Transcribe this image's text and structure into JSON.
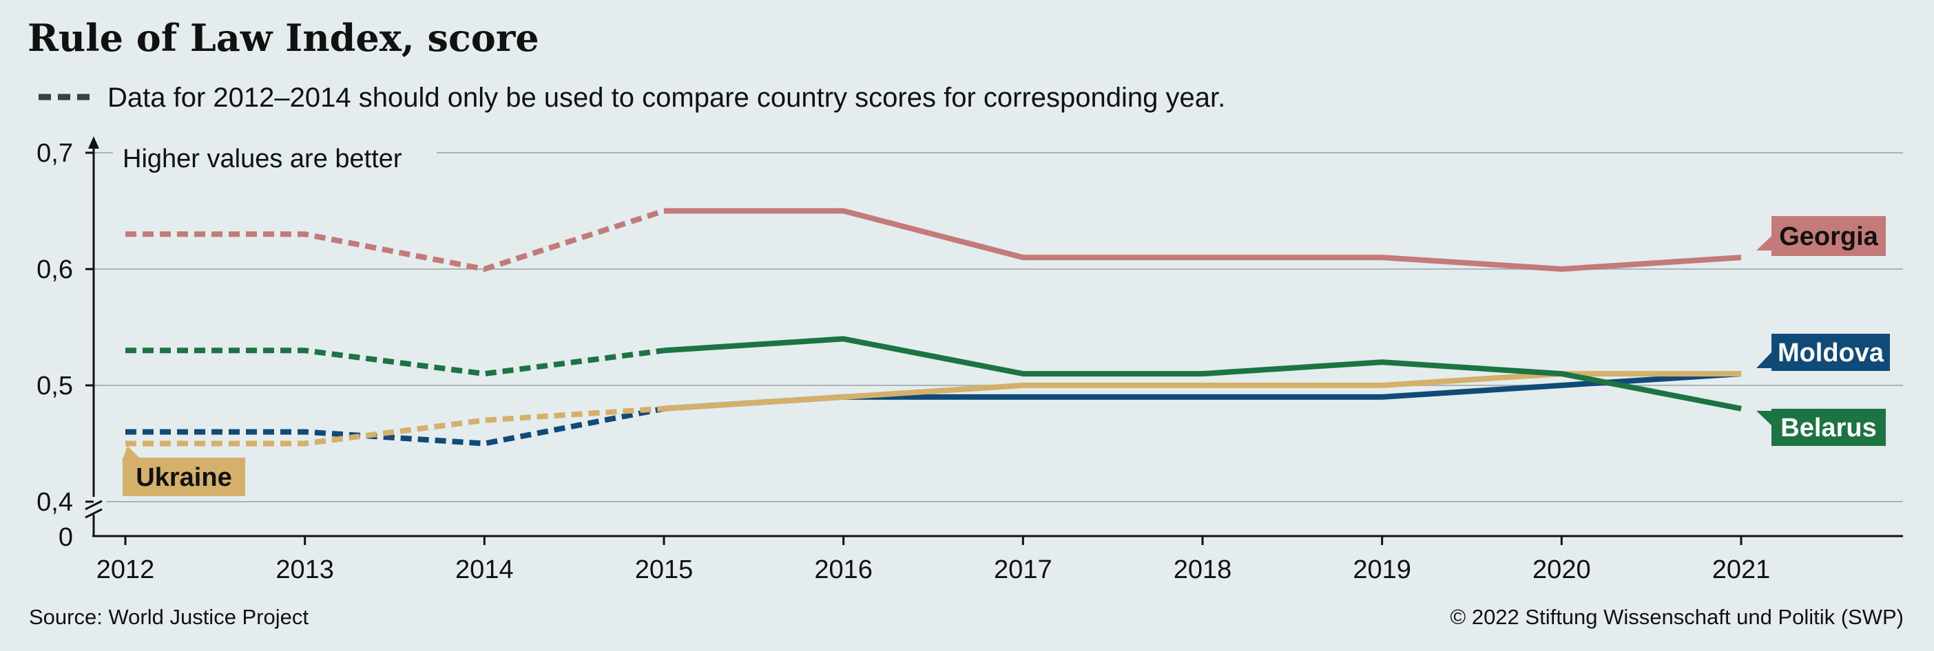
{
  "chart_data": {
    "type": "line",
    "title": "Rule of Law Index, score",
    "legend_note": "Data for 2012–2014 should only be used to compare country scores for corresponding year.",
    "ylabel": "Higher values are better",
    "x": [
      "2012",
      "2013",
      "2014",
      "2015",
      "2016",
      "2017",
      "2018",
      "2019",
      "2020",
      "2021"
    ],
    "y_ticks": [
      "0,7",
      "0,6",
      "0,5",
      "0,4"
    ],
    "y_tick_values": [
      0.7,
      0.6,
      0.5,
      0.4
    ],
    "y_zero_label": "0",
    "ylim": [
      0.4,
      0.7
    ],
    "axis_break": true,
    "dashed_range": [
      "2012",
      "2015"
    ],
    "grid": true,
    "series": [
      {
        "name": "Georgia",
        "color": "#c47a78",
        "label_color": "#111111",
        "values": [
          0.63,
          0.63,
          0.6,
          0.65,
          0.65,
          0.61,
          0.61,
          0.61,
          0.6,
          0.61
        ]
      },
      {
        "name": "Moldova",
        "color": "#0f4a78",
        "label_color": "#ffffff",
        "values": [
          0.46,
          0.46,
          0.45,
          0.48,
          0.49,
          0.49,
          0.49,
          0.49,
          0.5,
          0.51
        ]
      },
      {
        "name": "Ukraine",
        "color": "#d4b06a",
        "label_color": "#111111",
        "values": [
          0.45,
          0.45,
          0.47,
          0.48,
          0.49,
          0.5,
          0.5,
          0.5,
          0.51,
          0.51
        ]
      },
      {
        "name": "Belarus",
        "color": "#1c7442",
        "label_color": "#ffffff",
        "values": [
          0.53,
          0.53,
          0.51,
          0.53,
          0.54,
          0.51,
          0.51,
          0.52,
          0.51,
          0.48
        ]
      }
    ]
  },
  "footer": {
    "source": "Source: World Justice Project",
    "copyright": "© 2022 Stiftung Wissenschaft und Politik (SWP)"
  }
}
